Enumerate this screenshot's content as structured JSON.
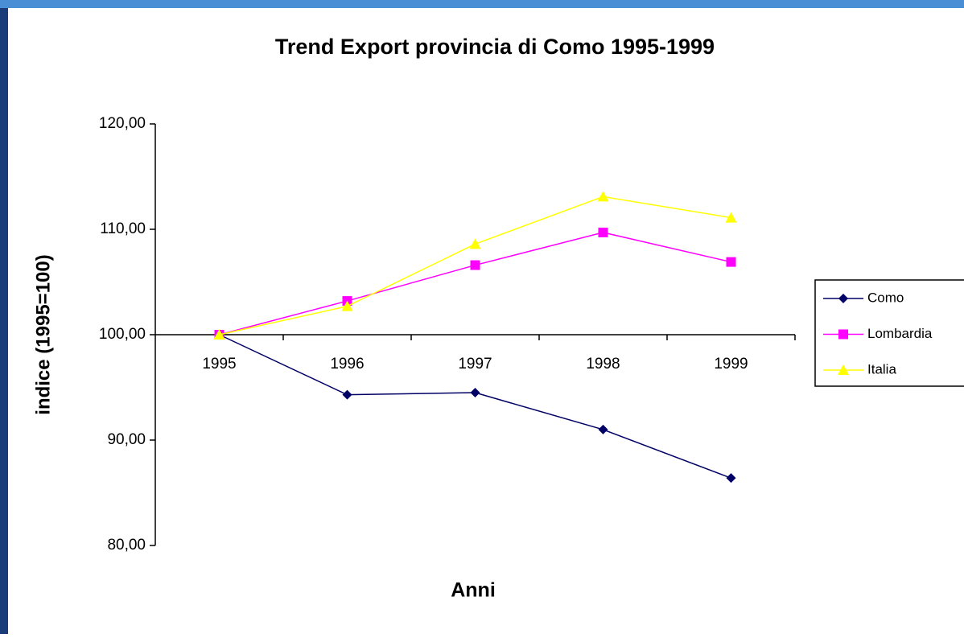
{
  "chart_data": {
    "type": "line",
    "title": "Trend Export provincia di Como 1995-1999",
    "x_label": "Anni",
    "y_label": "indice (1995=100)",
    "categories": [
      "1995",
      "1996",
      "1997",
      "1998",
      "1999"
    ],
    "series": [
      {
        "name": "Como",
        "color": "#000066",
        "marker": "diamond",
        "values": [
          100,
          94.3,
          94.5,
          91.0,
          86.4
        ]
      },
      {
        "name": "Lombardia",
        "color": "#ff00ff",
        "marker": "square",
        "values": [
          100,
          103.2,
          106.6,
          109.7,
          106.9
        ]
      },
      {
        "name": "Italia",
        "color": "#ffff00",
        "marker": "triangle",
        "values": [
          100,
          102.7,
          108.6,
          113.1,
          111.1
        ]
      }
    ],
    "ylim": [
      80,
      120
    ],
    "yticks": [
      {
        "value": 80,
        "label": "80,00"
      },
      {
        "value": 90,
        "label": "90,00"
      },
      {
        "value": 100,
        "label": "100,00"
      },
      {
        "value": 110,
        "label": "110,00"
      },
      {
        "value": 120,
        "label": "120,00"
      }
    ],
    "grid": false,
    "legend": "right"
  }
}
